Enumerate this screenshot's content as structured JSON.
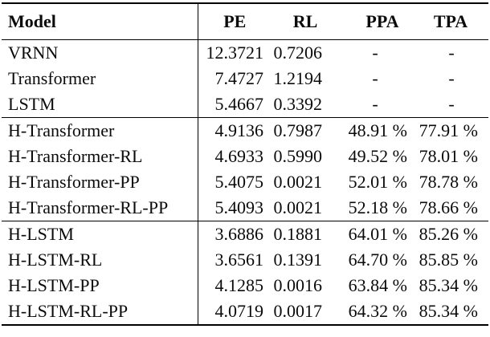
{
  "colors": {
    "background": "#ffffff",
    "text": "#0b0b0b",
    "rule": "#000000"
  },
  "table": {
    "columns": [
      "Model",
      "PE",
      "RL",
      "PPA",
      "TPA"
    ],
    "missing_value": "-",
    "groups": [
      {
        "name": "baselines",
        "rows": [
          [
            "VRNN",
            "12.3721",
            "0.7206",
            "-",
            "-"
          ],
          [
            "Transformer",
            "7.4727",
            "1.2194",
            "-",
            "-"
          ],
          [
            "LSTM",
            "5.4667",
            "0.3392",
            "-",
            "-"
          ]
        ]
      },
      {
        "name": "h-transformer-variants",
        "rows": [
          [
            "H-Transformer",
            "4.9136",
            "0.7987",
            "48.91 %",
            "77.91 %"
          ],
          [
            "H-Transformer-RL",
            "4.6933",
            "0.5990",
            "49.52 %",
            "78.01 %"
          ],
          [
            "H-Transformer-PP",
            "5.4075",
            "0.0021",
            "52.01 %",
            "78.78 %"
          ],
          [
            "H-Transformer-RL-PP",
            "5.4093",
            "0.0021",
            "52.18 %",
            "78.66 %"
          ]
        ]
      },
      {
        "name": "h-lstm-variants",
        "rows": [
          [
            "H-LSTM",
            "3.6886",
            "0.1881",
            "64.01 %",
            "85.26 %"
          ],
          [
            "H-LSTM-RL",
            "3.6561",
            "0.1391",
            "64.70 %",
            "85.85 %"
          ],
          [
            "H-LSTM-PP",
            "4.1285",
            "0.0016",
            "63.84 %",
            "85.34 %"
          ],
          [
            "H-LSTM-RL-PP",
            "4.0719",
            "0.0017",
            "64.32 %",
            "85.34 %"
          ]
        ]
      }
    ]
  }
}
